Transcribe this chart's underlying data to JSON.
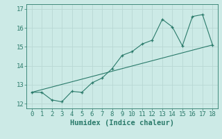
{
  "xlabel": "Humidex (Indice chaleur)",
  "x_data": [
    0,
    1,
    2,
    3,
    4,
    5,
    6,
    7,
    8,
    9,
    10,
    11,
    12,
    13,
    14,
    15,
    16,
    17,
    18
  ],
  "y_curve": [
    12.6,
    12.6,
    12.2,
    12.1,
    12.65,
    12.6,
    13.1,
    13.35,
    13.85,
    14.55,
    14.75,
    15.15,
    15.35,
    16.45,
    16.05,
    15.05,
    16.6,
    16.7,
    15.1
  ],
  "y_linear_start": 12.6,
  "y_linear_end": 15.1,
  "ylim": [
    11.75,
    17.25
  ],
  "xlim": [
    -0.5,
    18.5
  ],
  "yticks": [
    12,
    13,
    14,
    15,
    16,
    17
  ],
  "xticks": [
    0,
    1,
    2,
    3,
    4,
    5,
    6,
    7,
    8,
    9,
    10,
    11,
    12,
    13,
    14,
    15,
    16,
    17,
    18
  ],
  "line_color": "#2a7a6a",
  "bg_color": "#cceae6",
  "grid_color": "#b8d8d4",
  "tick_fontsize": 6.5,
  "label_fontsize": 7.5
}
